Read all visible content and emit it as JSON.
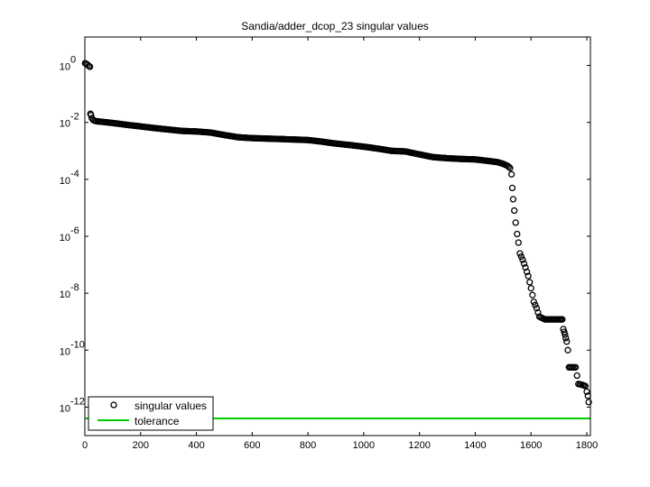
{
  "chart_data": {
    "type": "scatter",
    "title": "Sandia/adder_dcop_23 singular values",
    "xlabel": "",
    "ylabel": "",
    "xlim": [
      0,
      1813
    ],
    "ylim": [
      1e-13,
      10
    ],
    "yscale": "log",
    "x_ticks": [
      "0",
      "200",
      "400",
      "600",
      "800",
      "1000",
      "1200",
      "1400",
      "1600",
      "1800"
    ],
    "x_tick_values": [
      0,
      200,
      400,
      600,
      800,
      1000,
      1200,
      1400,
      1600,
      1800
    ],
    "y_ticks": [
      {
        "base": "10",
        "exp": "0",
        "value": 1
      },
      {
        "base": "10",
        "exp": "-2",
        "value": 0.01
      },
      {
        "base": "10",
        "exp": "-4",
        "value": 0.0001
      },
      {
        "base": "10",
        "exp": "-6",
        "value": 1e-06
      },
      {
        "base": "10",
        "exp": "-8",
        "value": 1e-08
      },
      {
        "base": "10",
        "exp": "-10",
        "value": 1e-10
      },
      {
        "base": "10",
        "exp": "-12",
        "value": 1e-12
      }
    ],
    "grid": false,
    "legend": {
      "placement": "bottom-left",
      "entries": [
        {
          "label": "singular values",
          "marker": "circle",
          "color": "#000000"
        },
        {
          "label": "tolerance",
          "marker": "line",
          "color": "#00cc00"
        }
      ]
    },
    "series": [
      {
        "name": "singular values",
        "style": "markers",
        "marker": "circle",
        "color": "#000000",
        "points": [
          [
            1,
            1.2
          ],
          [
            5,
            1.15
          ],
          [
            10,
            1.05
          ],
          [
            15,
            0.95
          ],
          [
            18,
            0.9
          ],
          [
            20,
            0.02
          ],
          [
            22,
            0.018
          ],
          [
            25,
            0.014
          ],
          [
            30,
            0.012
          ],
          [
            40,
            0.011
          ],
          [
            60,
            0.0105
          ],
          [
            80,
            0.01
          ],
          [
            100,
            0.0095
          ],
          [
            120,
            0.009
          ],
          [
            150,
            0.0082
          ],
          [
            180,
            0.0076
          ],
          [
            200,
            0.0072
          ],
          [
            250,
            0.0063
          ],
          [
            300,
            0.0056
          ],
          [
            350,
            0.005
          ],
          [
            400,
            0.0048
          ],
          [
            450,
            0.0044
          ],
          [
            500,
            0.0036
          ],
          [
            550,
            0.003
          ],
          [
            600,
            0.0028
          ],
          [
            650,
            0.0027
          ],
          [
            700,
            0.0026
          ],
          [
            750,
            0.0025
          ],
          [
            800,
            0.0024
          ],
          [
            850,
            0.0021
          ],
          [
            900,
            0.0018
          ],
          [
            950,
            0.0016
          ],
          [
            1000,
            0.0014
          ],
          [
            1050,
            0.0012
          ],
          [
            1100,
            0.001
          ],
          [
            1150,
            0.00095
          ],
          [
            1200,
            0.00075
          ],
          [
            1250,
            0.0006
          ],
          [
            1300,
            0.00055
          ],
          [
            1350,
            0.00052
          ],
          [
            1400,
            0.0005
          ],
          [
            1440,
            0.00045
          ],
          [
            1480,
            0.0004
          ],
          [
            1500,
            0.00035
          ],
          [
            1515,
            0.0003
          ],
          [
            1525,
            0.00025
          ],
          [
            1530,
            0.00015
          ],
          [
            1533,
            5e-05
          ],
          [
            1536,
            2e-05
          ],
          [
            1540,
            8e-06
          ],
          [
            1545,
            3e-06
          ],
          [
            1550,
            1.2e-06
          ],
          [
            1555,
            6e-07
          ],
          [
            1560,
            2.5e-07
          ],
          [
            1570,
            1.5e-07
          ],
          [
            1580,
            8e-08
          ],
          [
            1590,
            4e-08
          ],
          [
            1600,
            1.5e-08
          ],
          [
            1610,
            5e-09
          ],
          [
            1620,
            3e-09
          ],
          [
            1630,
            1.5e-09
          ],
          [
            1650,
            1.2e-09
          ],
          [
            1680,
            1.2e-09
          ],
          [
            1700,
            1.2e-09
          ],
          [
            1712,
            1.2e-09
          ],
          [
            1716,
            5.5e-10
          ],
          [
            1722,
            3.5e-10
          ],
          [
            1728,
            2e-10
          ],
          [
            1732,
            1e-10
          ],
          [
            1736,
            2.5e-11
          ],
          [
            1745,
            2.5e-11
          ],
          [
            1760,
            2.5e-11
          ],
          [
            1770,
            6.5e-12
          ],
          [
            1785,
            6e-12
          ],
          [
            1795,
            5.5e-12
          ],
          [
            1800,
            3.5e-12
          ],
          [
            1804,
            2.5e-12
          ],
          [
            1807,
            1.5e-12
          ]
        ]
      },
      {
        "name": "tolerance",
        "style": "line",
        "color": "#00cc00",
        "points": [
          [
            0,
            4e-13
          ],
          [
            1813,
            4e-13
          ]
        ]
      }
    ]
  }
}
